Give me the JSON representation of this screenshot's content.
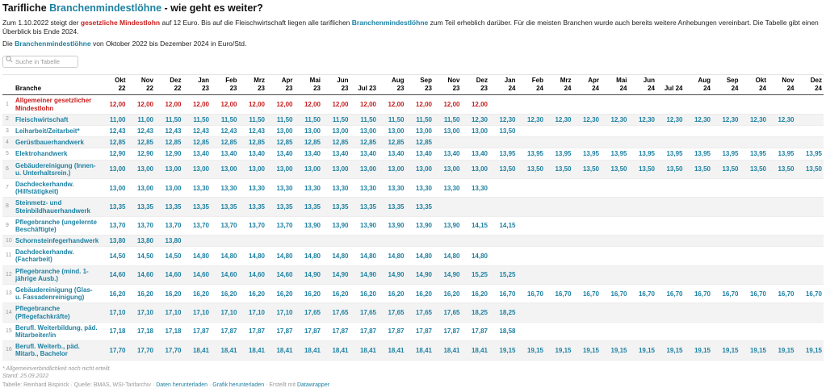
{
  "colors": {
    "accent_blue": "#1d81a2",
    "accent_red": "#c71e1d",
    "stripe": "#f3f3f3"
  },
  "header": {
    "title_parts": [
      {
        "text": "Tarifliche ",
        "style": "plain"
      },
      {
        "text": "Branchenmindestlöhne",
        "style": "blue"
      },
      {
        "text": " - wie geht es weiter?",
        "style": "plain"
      }
    ],
    "intro_parts": [
      {
        "text": "Zum 1.10.2022 steigt der ",
        "style": "plain"
      },
      {
        "text": "gesetzliche Mindestlohn",
        "style": "red"
      },
      {
        "text": " auf 12 Euro. Bis auf die Fleischwirtschaft liegen alle tariflichen ",
        "style": "plain"
      },
      {
        "text": "Branchenmindestlöhne",
        "style": "bluebold"
      },
      {
        "text": " zum Teil erheblich darüber. Für die meisten Branchen wurde auch bereits weitere Anhebungen vereinbart. Die Tabelle gibt einen Überblick bis Ende 2024.",
        "style": "plain"
      }
    ],
    "subtitle_parts": [
      {
        "text": "Die ",
        "style": "plain"
      },
      {
        "text": "Branchenmindestlöhne",
        "style": "bluebold"
      },
      {
        "text": " von Oktober 2022 bis Dezember 2024 in Euro/Std.",
        "style": "plain"
      }
    ]
  },
  "search": {
    "placeholder": "Suche in Tabelle",
    "icon": "magnifier-icon"
  },
  "chart_data": {
    "type": "table",
    "title": "Tarifliche Branchenmindestlöhne - wie geht es weiter?",
    "unit": "Euro/Std.",
    "row_header": "Branche",
    "columns": [
      "Okt\n22",
      "Nov\n22",
      "Dez\n22",
      "Jan\n23",
      "Feb\n23",
      "Mrz\n23",
      "Apr\n23",
      "Mai\n23",
      "Jun\n23",
      "Jul 23",
      "Aug\n23",
      "Sep\n23",
      "Nov\n23",
      "Dez\n23",
      "Jan\n24",
      "Feb\n24",
      "Mrz\n24",
      "Apr\n24",
      "Mai\n24",
      "Jun\n24",
      "Jul 24",
      "Aug\n24",
      "Sep\n24",
      "Okt\n24",
      "Nov\n24",
      "Dez\n24"
    ],
    "rows": [
      {
        "num": "1",
        "name": "Allgemeiner gesetzlicher Mindestlohn",
        "highlight": "red",
        "values": [
          "12,00",
          "12,00",
          "12,00",
          "12,00",
          "12,00",
          "12,00",
          "12,00",
          "12,00",
          "12,00",
          "12,00",
          "12,00",
          "12,00",
          "12,00",
          "12,00",
          "",
          "",
          "",
          "",
          "",
          "",
          "",
          "",
          "",
          "",
          "",
          ""
        ]
      },
      {
        "num": "2",
        "name": "Fleischwirtschaft",
        "highlight": "blue",
        "values": [
          "11,00",
          "11,00",
          "11,50",
          "11,50",
          "11,50",
          "11,50",
          "11,50",
          "11,50",
          "11,50",
          "11,50",
          "11,50",
          "11,50",
          "11,50",
          "12,30",
          "12,30",
          "12,30",
          "12,30",
          "12,30",
          "12,30",
          "12,30",
          "12,30",
          "12,30",
          "12,30",
          "12,30",
          "12,30",
          ""
        ]
      },
      {
        "num": "3",
        "name": "Leiharbeit/Zeitarbeit*",
        "highlight": "blue",
        "values": [
          "12,43",
          "12,43",
          "12,43",
          "12,43",
          "12,43",
          "12,43",
          "13,00",
          "13,00",
          "13,00",
          "13,00",
          "13,00",
          "13,00",
          "13,00",
          "13,00",
          "13,50",
          "",
          "",
          "",
          "",
          "",
          "",
          "",
          "",
          "",
          "",
          ""
        ]
      },
      {
        "num": "4",
        "name": "Gerüstbauerhandwerk",
        "highlight": "blue",
        "values": [
          "12,85",
          "12,85",
          "12,85",
          "12,85",
          "12,85",
          "12,85",
          "12,85",
          "12,85",
          "12,85",
          "12,85",
          "12,85",
          "12,85",
          "",
          "",
          "",
          "",
          "",
          "",
          "",
          "",
          "",
          "",
          "",
          "",
          "",
          ""
        ]
      },
      {
        "num": "5",
        "name": "Elektrohandwerk",
        "highlight": "blue",
        "values": [
          "12,90",
          "12,90",
          "12,90",
          "13,40",
          "13,40",
          "13,40",
          "13,40",
          "13,40",
          "13,40",
          "13,40",
          "13,40",
          "13,40",
          "13,40",
          "13,40",
          "13,95",
          "13,95",
          "13,95",
          "13,95",
          "13,95",
          "13,95",
          "13,95",
          "13,95",
          "13,95",
          "13,95",
          "13,95",
          "13,95"
        ]
      },
      {
        "num": "6",
        "name": "Gebäudereinigung (Innen- u. Unterhaltsrein.)",
        "highlight": "blue",
        "values": [
          "13,00",
          "13,00",
          "13,00",
          "13,00",
          "13,00",
          "13,00",
          "13,00",
          "13,00",
          "13,00",
          "13,00",
          "13,00",
          "13,00",
          "13,00",
          "13,00",
          "13,50",
          "13,50",
          "13,50",
          "13,50",
          "13,50",
          "13,50",
          "13,50",
          "13,50",
          "13,50",
          "13,50",
          "13,50",
          "13,50"
        ]
      },
      {
        "num": "7",
        "name": "Dachdeckerhandw. (Hilfstätigkeit)",
        "highlight": "blue",
        "values": [
          "13,00",
          "13,00",
          "13,00",
          "13,30",
          "13,30",
          "13,30",
          "13,30",
          "13,30",
          "13,30",
          "13,30",
          "13,30",
          "13,30",
          "13,30",
          "13,30",
          "",
          "",
          "",
          "",
          "",
          "",
          "",
          "",
          "",
          "",
          "",
          ""
        ]
      },
      {
        "num": "8",
        "name": "Steinmetz- und Steinbildhauerhandwerk",
        "highlight": "blue",
        "values": [
          "13,35",
          "13,35",
          "13,35",
          "13,35",
          "13,35",
          "13,35",
          "13,35",
          "13,35",
          "13,35",
          "13,35",
          "13,35",
          "13,35",
          "",
          "",
          "",
          "",
          "",
          "",
          "",
          "",
          "",
          "",
          "",
          "",
          "",
          ""
        ]
      },
      {
        "num": "9",
        "name": "Pflegebranche (ungelernte Beschäftigte)",
        "highlight": "blue",
        "values": [
          "13,70",
          "13,70",
          "13,70",
          "13,70",
          "13,70",
          "13,70",
          "13,70",
          "13,90",
          "13,90",
          "13,90",
          "13,90",
          "13,90",
          "13,90",
          "14,15",
          "14,15",
          "",
          "",
          "",
          "",
          "",
          "",
          "",
          "",
          "",
          "",
          ""
        ]
      },
      {
        "num": "10",
        "name": "Schornsteinfegerhandwerk",
        "highlight": "blue",
        "values": [
          "13,80",
          "13,80",
          "13,80",
          "",
          "",
          "",
          "",
          "",
          "",
          "",
          "",
          "",
          "",
          "",
          "",
          "",
          "",
          "",
          "",
          "",
          "",
          "",
          "",
          "",
          "",
          ""
        ]
      },
      {
        "num": "11",
        "name": "Dachdeckerhandw. (Facharbeit)",
        "highlight": "blue",
        "values": [
          "14,50",
          "14,50",
          "14,50",
          "14,80",
          "14,80",
          "14,80",
          "14,80",
          "14,80",
          "14,80",
          "14,80",
          "14,80",
          "14,80",
          "14,80",
          "14,80",
          "",
          "",
          "",
          "",
          "",
          "",
          "",
          "",
          "",
          "",
          "",
          ""
        ]
      },
      {
        "num": "12",
        "name": "Pflegebranche (mind. 1-jährige Ausb.)",
        "highlight": "blue",
        "values": [
          "14,60",
          "14,60",
          "14,60",
          "14,60",
          "14,60",
          "14,60",
          "14,60",
          "14,90",
          "14,90",
          "14,90",
          "14,90",
          "14,90",
          "14,90",
          "15,25",
          "15,25",
          "",
          "",
          "",
          "",
          "",
          "",
          "",
          "",
          "",
          "",
          ""
        ]
      },
      {
        "num": "13",
        "name": "Gebäudereinigung (Glas- u. Fassadenreinigung)",
        "highlight": "blue",
        "values": [
          "16,20",
          "16,20",
          "16,20",
          "16,20",
          "16,20",
          "16,20",
          "16,20",
          "16,20",
          "16,20",
          "16,20",
          "16,20",
          "16,20",
          "16,20",
          "16,20",
          "16,70",
          "16,70",
          "16,70",
          "16,70",
          "16,70",
          "16,70",
          "16,70",
          "16,70",
          "16,70",
          "16,70",
          "16,70",
          "16,70"
        ]
      },
      {
        "num": "14",
        "name": "Pflegebranche (Pflegefachkräfte)",
        "highlight": "blue",
        "values": [
          "17,10",
          "17,10",
          "17,10",
          "17,10",
          "17,10",
          "17,10",
          "17,10",
          "17,65",
          "17,65",
          "17,65",
          "17,65",
          "17,65",
          "17,65",
          "18,25",
          "18,25",
          "",
          "",
          "",
          "",
          "",
          "",
          "",
          "",
          "",
          "",
          ""
        ]
      },
      {
        "num": "15",
        "name": "Berufl. Weiterbildung, päd. Mitarbeiter/in",
        "highlight": "blue",
        "values": [
          "17,18",
          "17,18",
          "17,18",
          "17,87",
          "17,87",
          "17,87",
          "17,87",
          "17,87",
          "17,87",
          "17,87",
          "17,87",
          "17,87",
          "17,87",
          "17,87",
          "18,58",
          "",
          "",
          "",
          "",
          "",
          "",
          "",
          "",
          "",
          "",
          ""
        ]
      },
      {
        "num": "16",
        "name": "Berufl. Weiterb., päd. Mitarb., Bachelor",
        "highlight": "blue",
        "values": [
          "17,70",
          "17,70",
          "17,70",
          "18,41",
          "18,41",
          "18,41",
          "18,41",
          "18,41",
          "18,41",
          "18,41",
          "18,41",
          "18,41",
          "18,41",
          "18,41",
          "19,15",
          "19,15",
          "19,15",
          "19,15",
          "19,15",
          "19,15",
          "19,15",
          "19,15",
          "19,15",
          "19,15",
          "19,15",
          "19,15"
        ]
      }
    ]
  },
  "footer": {
    "footnote": "* Allgemeinverbindlichkeit noch nicht erteilt.",
    "stand": "Stand: 25.09.2022",
    "byline_parts": [
      {
        "text": "Tabelle: Reinhard Bispinck · Quelle: BMAS, WSI-Tarifarchiv · "
      },
      {
        "text": "Daten herunterladen",
        "link": true,
        "name": "download-data-link"
      },
      {
        "text": " · "
      },
      {
        "text": "Grafik herunterladen",
        "link": true,
        "name": "download-image-link"
      },
      {
        "text": " · Erstellt mit "
      },
      {
        "text": "Datawrapper",
        "link": true,
        "name": "datawrapper-link"
      }
    ]
  }
}
